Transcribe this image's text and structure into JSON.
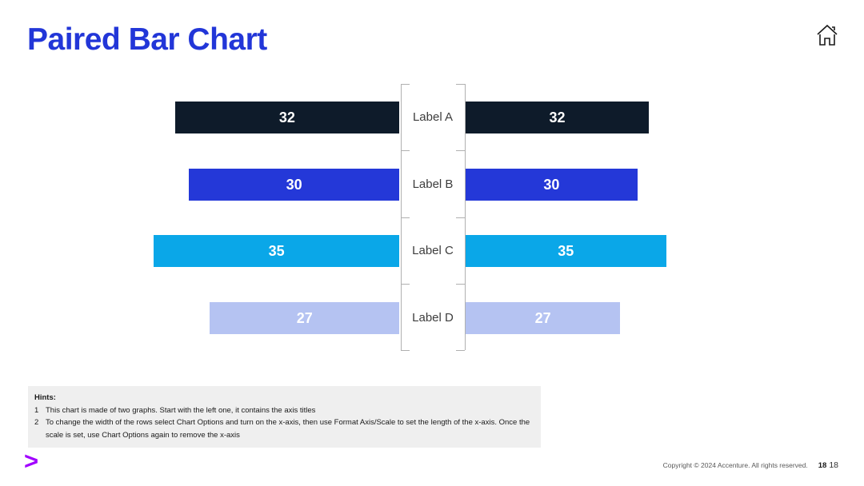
{
  "page": {
    "title": "Paired Bar Chart"
  },
  "header": {
    "home_icon": "home-icon"
  },
  "chart_data": {
    "type": "bar",
    "variant": "paired-horizontal",
    "title": "Paired Bar Chart",
    "categories": [
      "Label A",
      "Label B",
      "Label C",
      "Label D"
    ],
    "series": [
      {
        "name": "left",
        "values": [
          32,
          30,
          35,
          27
        ]
      },
      {
        "name": "right",
        "values": [
          32,
          30,
          35,
          27
        ]
      }
    ],
    "bar_colors": [
      "#0e1b2a",
      "#2438d8",
      "#0aa7e8",
      "#b5c3f2"
    ],
    "value_label_color": "#ffffff",
    "category_label_color": "#3d3d3d",
    "axis_line_color": "#b0b0b0",
    "xlim": [
      0,
      35
    ],
    "grid": false,
    "legend": "none"
  },
  "hints": {
    "heading": "Hints:",
    "items": [
      {
        "num": "1",
        "text": "This chart is made of two graphs. Start with the left one, it contains the axis titles"
      },
      {
        "num": "2",
        "text": "To change the width of the rows select Chart Options and turn on the x-axis, then use Format Axis/Scale to set the length of the x-axis. Once the scale is set, use Chart Options again to remove the x-axis"
      }
    ]
  },
  "footer": {
    "logo_glyph": ">",
    "copyright": "Copyright © 2024 Accenture. All rights reserved.",
    "page_number_bold": "18",
    "page_number": "18"
  },
  "colors": {
    "title_blue": "#2236d8",
    "accenture_purple": "#a100ff",
    "hints_background": "#efefef",
    "home_icon_stroke": "#1a1a1a"
  }
}
